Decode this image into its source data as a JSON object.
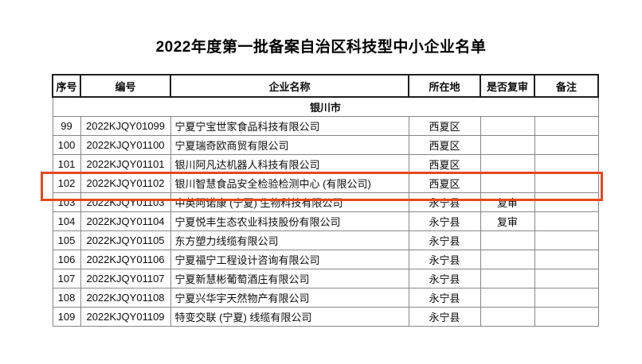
{
  "title": "2022年度第一批备案自治区科技型中小企业名单",
  "table": {
    "headers": [
      "序号",
      "编号",
      "企业名称",
      "所在地",
      "是否复审",
      "备注"
    ],
    "section": "银川市",
    "rows": [
      {
        "no": "99",
        "code": "2022KJQY01099",
        "name": "宁夏宁宝世家食品科技有限公司",
        "location": "西夏区",
        "review": "",
        "note": ""
      },
      {
        "no": "100",
        "code": "2022KJQY01100",
        "name": "宁夏瑞奇欧商贸有限公司",
        "location": "西夏区",
        "review": "",
        "note": ""
      },
      {
        "no": "101",
        "code": "2022KJQY01101",
        "name": "银川阿凡达机器人科技有限公司",
        "location": "西夏区",
        "review": "",
        "note": ""
      },
      {
        "no": "102",
        "code": "2022KJQY01102",
        "name": "银川智慧食品安全检验检测中心 (有限公司)",
        "location": "西夏区",
        "review": "",
        "note": ""
      },
      {
        "no": "103",
        "code": "2022KJQY01103",
        "name": "中英阿诺康 (宁夏) 生物科技有限公司",
        "location": "永宁县",
        "review": "复审",
        "note": ""
      },
      {
        "no": "104",
        "code": "2022KJQY01104",
        "name": "宁夏悦丰生态农业科技股份有限公司",
        "location": "永宁县",
        "review": "复审",
        "note": ""
      },
      {
        "no": "105",
        "code": "2022KJQY01105",
        "name": "东方塑力线缆有限公司",
        "location": "永宁县",
        "review": "",
        "note": ""
      },
      {
        "no": "106",
        "code": "2022KJQY01106",
        "name": "宁夏福宁工程设计咨询有限公司",
        "location": "永宁县",
        "review": "",
        "note": ""
      },
      {
        "no": "107",
        "code": "2022KJQY01107",
        "name": "宁夏新慧彬葡萄酒庄有限公司",
        "location": "永宁县",
        "review": "",
        "note": ""
      },
      {
        "no": "108",
        "code": "2022KJQY01108",
        "name": "宁夏兴华宇天然物产有限公司",
        "location": "永宁县",
        "review": "",
        "note": ""
      },
      {
        "no": "109",
        "code": "2022KJQY01109",
        "name": "特变交联 (宁夏) 线缆有限公司",
        "location": "永宁县",
        "review": "",
        "note": ""
      }
    ],
    "highlighted_row_no": "102"
  },
  "colors": {
    "highlight_box": "#e5481f",
    "grid_line": "#878787",
    "header_line": "#1f1f1f",
    "text": "#0c0c0c"
  }
}
